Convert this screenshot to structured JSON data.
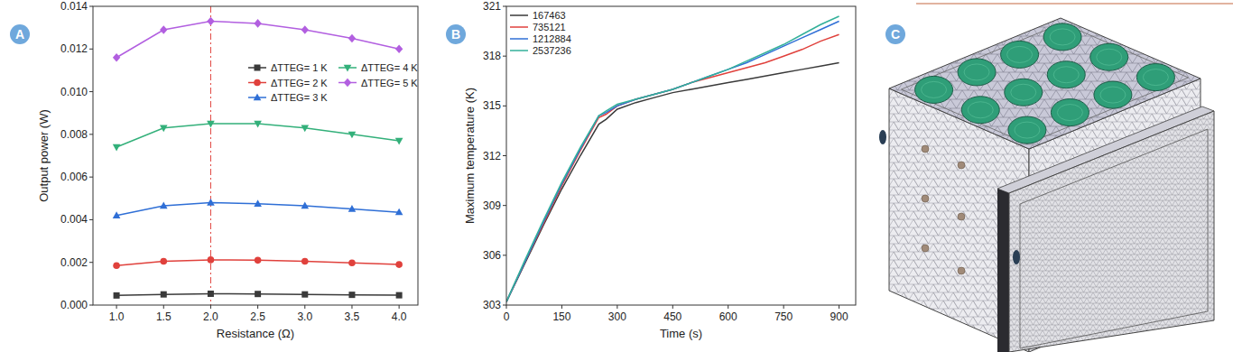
{
  "panel_labels": [
    "A",
    "B",
    "C"
  ],
  "chart_data": [
    {
      "type": "line",
      "x_label": "Resistance (Ω)",
      "y_label": "Output power (W)",
      "x": [
        1,
        1.5,
        2,
        2.5,
        3,
        3.5,
        4
      ],
      "xlim": [
        0.75,
        4.2
      ],
      "xticks": [
        {
          "value": 1,
          "label": "1.0"
        },
        {
          "value": 1.5,
          "label": "1.5"
        },
        {
          "value": 2,
          "label": "2.0"
        },
        {
          "value": 2.5,
          "label": "2.5"
        },
        {
          "value": 3,
          "label": "3.0"
        },
        {
          "value": 3.5,
          "label": "3.5"
        },
        {
          "value": 4,
          "label": "4.0"
        }
      ],
      "ylim": [
        0,
        0.014
      ],
      "yticks": [
        {
          "value": 0,
          "label": "0.000"
        },
        {
          "value": 0.002,
          "label": "0.002"
        },
        {
          "value": 0.004,
          "label": "0.004"
        },
        {
          "value": 0.006,
          "label": "0.006"
        },
        {
          "value": 0.008,
          "label": "0.008"
        },
        {
          "value": 0.01,
          "label": "0.010"
        },
        {
          "value": 0.012,
          "label": "0.012"
        },
        {
          "value": 0.014,
          "label": "0.014"
        }
      ],
      "grid": false,
      "legend": "top",
      "reference_x": 2,
      "series": [
        {
          "name": "ΔTTEG= 1 K",
          "color": "#3a3a3a",
          "marker": "square",
          "values": [
            0.00045,
            0.0005,
            0.00053,
            0.00052,
            0.0005,
            0.00048,
            0.00046
          ]
        },
        {
          "name": "ΔTTEG= 2 K",
          "color": "#e0413c",
          "marker": "circle",
          "values": [
            0.00185,
            0.00205,
            0.00212,
            0.0021,
            0.00205,
            0.00198,
            0.0019
          ]
        },
        {
          "name": "ΔTTEG= 3 K",
          "color": "#2f6fd6",
          "marker": "triangle",
          "values": [
            0.0042,
            0.00465,
            0.0048,
            0.00475,
            0.00465,
            0.0045,
            0.00435
          ]
        },
        {
          "name": "ΔTTEG= 4 K",
          "color": "#33b07a",
          "marker": "triangle-down",
          "values": [
            0.0074,
            0.0083,
            0.0085,
            0.0085,
            0.0083,
            0.008,
            0.0077
          ]
        },
        {
          "name": "ΔTTEG= 5 K",
          "color": "#b25fe0",
          "marker": "diamond",
          "values": [
            0.0116,
            0.0129,
            0.0133,
            0.0132,
            0.0129,
            0.0125,
            0.012
          ]
        }
      ]
    },
    {
      "type": "line",
      "x_label": "Time (s)",
      "y_label": "Maximum temperature (K)",
      "x": [
        0,
        50,
        100,
        150,
        200,
        250,
        270,
        300,
        350,
        400,
        450,
        500,
        550,
        600,
        650,
        700,
        750,
        800,
        850,
        900
      ],
      "xlim": [
        0,
        945
      ],
      "xticks": [
        0,
        150,
        300,
        450,
        600,
        750,
        900
      ],
      "ylim": [
        303,
        321
      ],
      "yticks": [
        303,
        306,
        309,
        312,
        315,
        318,
        321
      ],
      "grid": false,
      "legend": "upper left",
      "series": [
        {
          "name": "167463",
          "color": "#3a3a3a",
          "marker": "none",
          "values": [
            303.2,
            305.5,
            307.8,
            310.0,
            312.0,
            313.9,
            314.2,
            314.8,
            315.2,
            315.5,
            315.8,
            316.0,
            316.2,
            316.4,
            316.6,
            316.8,
            317.0,
            317.2,
            317.4,
            317.6
          ]
        },
        {
          "name": "735121",
          "color": "#e0413c",
          "marker": "none",
          "values": [
            303.2,
            305.6,
            307.9,
            310.2,
            312.3,
            314.3,
            314.5,
            315.0,
            315.4,
            315.7,
            316.0,
            316.4,
            316.7,
            317.0,
            317.3,
            317.6,
            318.0,
            318.4,
            318.9,
            319.3
          ]
        },
        {
          "name": "1212884",
          "color": "#2f6fd6",
          "marker": "none",
          "values": [
            303.2,
            305.6,
            308.0,
            310.3,
            312.4,
            314.4,
            314.6,
            315.0,
            315.4,
            315.7,
            316.0,
            316.4,
            316.8,
            317.2,
            317.6,
            318.1,
            318.6,
            319.1,
            319.6,
            320.1
          ]
        },
        {
          "name": "2537236",
          "color": "#33b09a",
          "marker": "none",
          "values": [
            303.2,
            305.7,
            308.1,
            310.4,
            312.5,
            314.4,
            314.7,
            315.1,
            315.4,
            315.7,
            316.0,
            316.4,
            316.8,
            317.2,
            317.7,
            318.2,
            318.7,
            319.3,
            319.9,
            320.4
          ]
        }
      ]
    }
  ]
}
